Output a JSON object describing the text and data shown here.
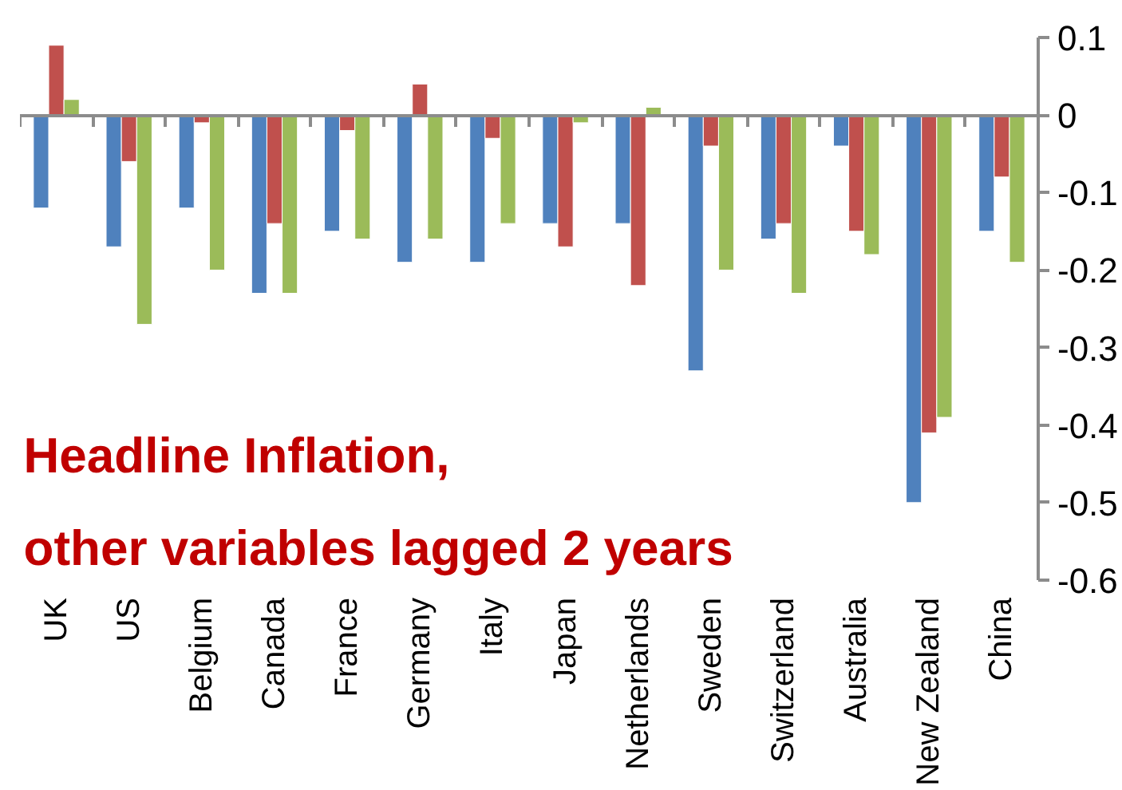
{
  "chart_data": {
    "type": "bar",
    "categories": [
      "UK",
      "US",
      "Belgium",
      "Canada",
      "France",
      "Germany",
      "Italy",
      "Japan",
      "Netherlands",
      "Sweden",
      "Switzerland",
      "Australia",
      "New Zealand",
      "China"
    ],
    "series": [
      {
        "color": "#4f81bd",
        "values": [
          -0.12,
          -0.17,
          -0.12,
          -0.23,
          -0.15,
          -0.19,
          -0.19,
          -0.14,
          -0.14,
          -0.33,
          -0.16,
          -0.04,
          -0.5,
          -0.15
        ]
      },
      {
        "color": "#c0504d",
        "values": [
          0.09,
          -0.06,
          -0.01,
          -0.14,
          -0.02,
          0.04,
          -0.03,
          -0.17,
          -0.22,
          -0.04,
          -0.14,
          -0.15,
          -0.41,
          -0.08
        ]
      },
      {
        "color": "#9bbb59",
        "values": [
          0.02,
          -0.27,
          -0.2,
          -0.23,
          -0.16,
          -0.16,
          -0.14,
          -0.01,
          0.01,
          -0.2,
          -0.23,
          -0.18,
          -0.39,
          -0.19
        ]
      }
    ],
    "annotations": [
      "Headline Inflation,",
      "other variables lagged 2 years"
    ],
    "ylim": [
      -0.6,
      0.1
    ],
    "yticks": [
      {
        "value": 0.1,
        "label": "0.1"
      },
      {
        "value": 0,
        "label": "0"
      },
      {
        "value": -0.1,
        "label": "-0.1"
      },
      {
        "value": -0.2,
        "label": "-0.2"
      },
      {
        "value": -0.3,
        "label": "-0.3"
      },
      {
        "value": -0.4,
        "label": "-0.4"
      },
      {
        "value": -0.5,
        "label": "-0.5"
      },
      {
        "value": -0.6,
        "label": "-0.6"
      }
    ]
  }
}
